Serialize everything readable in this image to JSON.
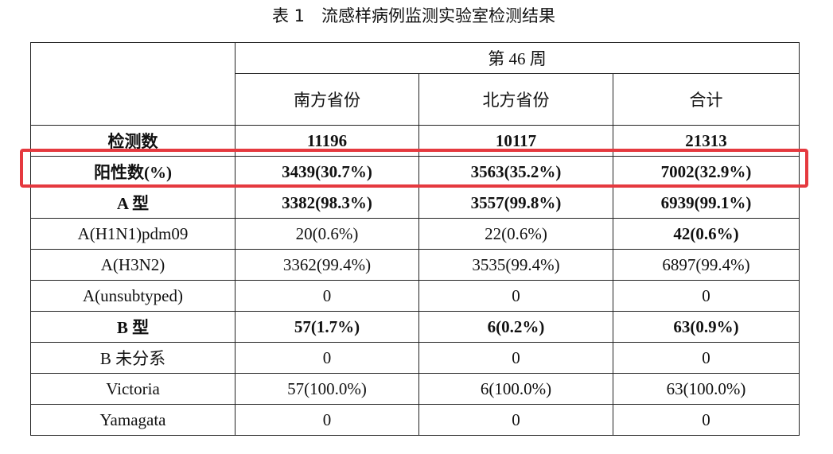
{
  "title": "表 1　流感样病例监测实验室检测结果",
  "table": {
    "group": "第 46 周",
    "columns": [
      "南方省份",
      "北方省份",
      "合计"
    ],
    "rows": [
      [
        "检测数",
        "11196",
        "10117",
        "21313"
      ],
      [
        "阳性数(%)",
        "3439(30.7%)",
        "3563(35.2%)",
        "7002(32.9%)"
      ],
      [
        "A 型",
        "3382(98.3%)",
        "3557(99.8%)",
        "6939(99.1%)"
      ],
      [
        "A(H1N1)pdm09",
        "20(0.6%)",
        "22(0.6%)",
        "42(0.6%)"
      ],
      [
        "A(H3N2)",
        "3362(99.4%)",
        "3535(99.4%)",
        "6897(99.4%)"
      ],
      [
        "A(unsubtyped)",
        "0",
        "0",
        "0"
      ],
      [
        "B 型",
        "57(1.7%)",
        "6(0.2%)",
        "63(0.9%)"
      ],
      [
        "B 未分系",
        "0",
        "0",
        "0"
      ],
      [
        "Victoria",
        "57(100.0%)",
        "6(100.0%)",
        "63(100.0%)"
      ],
      [
        "Yamagata",
        "0",
        "0",
        "0"
      ]
    ]
  }
}
